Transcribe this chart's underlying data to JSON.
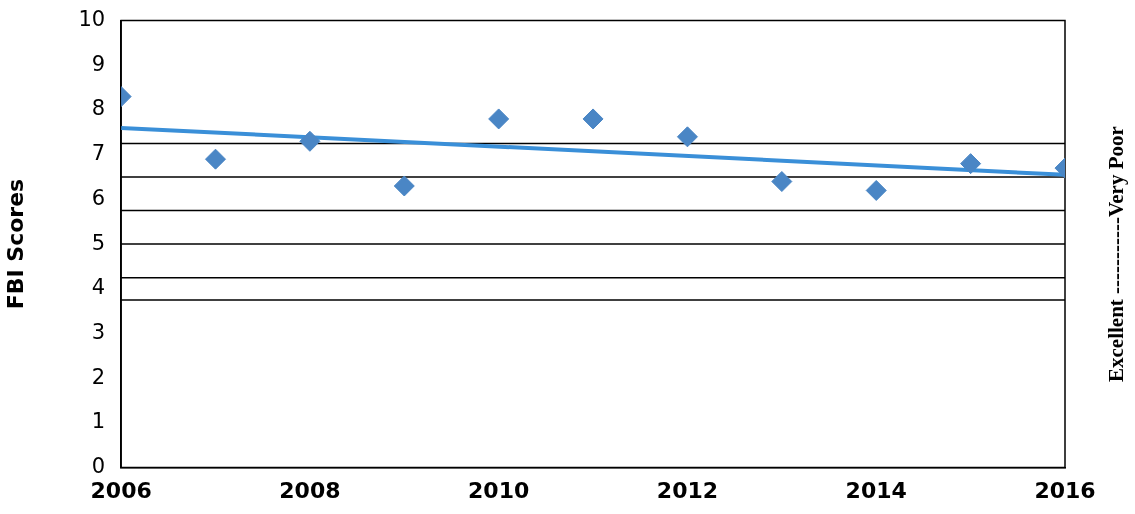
{
  "chart_data": {
    "type": "scatter",
    "ylabel": "FBI Scores",
    "y2label": "Excellent -----------Very Poor",
    "x": [
      2006,
      2007,
      2008,
      2009,
      2010,
      2011,
      2012,
      2013,
      2014,
      2015,
      2016
    ],
    "series": [
      {
        "color": "#4a86c5",
        "marker": "diamond",
        "values": [
          8.3,
          6.9,
          7.3,
          6.3,
          7.8,
          7.8,
          7.4,
          6.4,
          6.2,
          6.8,
          6.7
        ]
      },
      {
        "type": "line",
        "color": "#3a8fd8",
        "marker": "none",
        "x": [
          2006,
          2016
        ],
        "values": [
          7.6,
          6.55
        ]
      }
    ],
    "xlim": [
      2006,
      2016
    ],
    "xticks": [
      2006,
      2008,
      2010,
      2012,
      2014,
      2016
    ],
    "ylim": [
      0,
      10
    ],
    "yticks": [
      0,
      1,
      2,
      3,
      4,
      5,
      6,
      7,
      8,
      9,
      10
    ],
    "ref_lines": [
      {
        "axis": "y",
        "value": 7.25,
        "color": "#000000"
      },
      {
        "axis": "y",
        "value": 6.5,
        "color": "#000000"
      },
      {
        "axis": "y",
        "value": 5.75,
        "color": "#000000"
      },
      {
        "axis": "y",
        "value": 5,
        "color": "#000000"
      },
      {
        "axis": "y",
        "value": 4.25,
        "color": "#000000"
      },
      {
        "axis": "y",
        "value": 3.75,
        "color": "#000000"
      }
    ]
  }
}
